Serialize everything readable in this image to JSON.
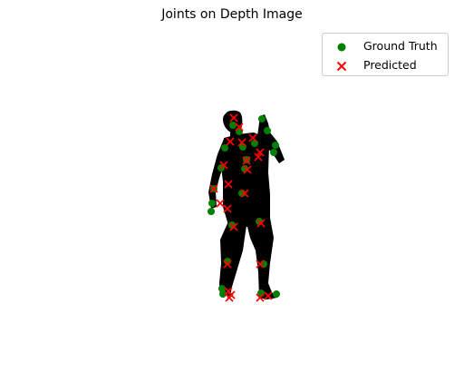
{
  "chart_data": {
    "type": "scatter",
    "title": "Joints on Depth Image",
    "xlabel": "",
    "ylabel": "",
    "axes_visible": false,
    "legend_position": "top-right",
    "background": "depth silhouette (black on white)",
    "series": [
      {
        "name": "Ground Truth",
        "marker": "circle",
        "color": "#008000",
        "points": [
          [
            257,
            138
          ],
          [
            264,
            145
          ],
          [
            289,
            131
          ],
          [
            295,
            144
          ],
          [
            281,
            158
          ],
          [
            304,
            160
          ],
          [
            302,
            168
          ],
          [
            248,
            163
          ],
          [
            268,
            162
          ],
          [
            272,
            176
          ],
          [
            244,
            185
          ],
          [
            270,
            186
          ],
          [
            236,
            208
          ],
          [
            234,
            224
          ],
          [
            233,
            233
          ],
          [
            267,
            213
          ],
          [
            256,
            248
          ],
          [
            286,
            244
          ],
          [
            251,
            288
          ],
          [
            291,
            291
          ],
          [
            245,
            318
          ],
          [
            246,
            324
          ],
          [
            288,
            323
          ],
          [
            305,
            324
          ]
        ]
      },
      {
        "name": "Predicted",
        "marker": "x",
        "color": "#ff0000",
        "points": [
          [
            258,
            130
          ],
          [
            264,
            140
          ],
          [
            279,
            152
          ],
          [
            267,
            157
          ],
          [
            254,
            156
          ],
          [
            287,
            168
          ],
          [
            285,
            173
          ],
          [
            272,
            177
          ],
          [
            247,
            182
          ],
          [
            273,
            187
          ],
          [
            252,
            203
          ],
          [
            236,
            208
          ],
          [
            243,
            224
          ],
          [
            251,
            230
          ],
          [
            270,
            213
          ],
          [
            258,
            250
          ],
          [
            288,
            246
          ],
          [
            251,
            291
          ],
          [
            287,
            291
          ],
          [
            252,
            321
          ],
          [
            255,
            325
          ],
          [
            253,
            328
          ],
          [
            287,
            328
          ],
          [
            296,
            326
          ]
        ]
      }
    ]
  }
}
